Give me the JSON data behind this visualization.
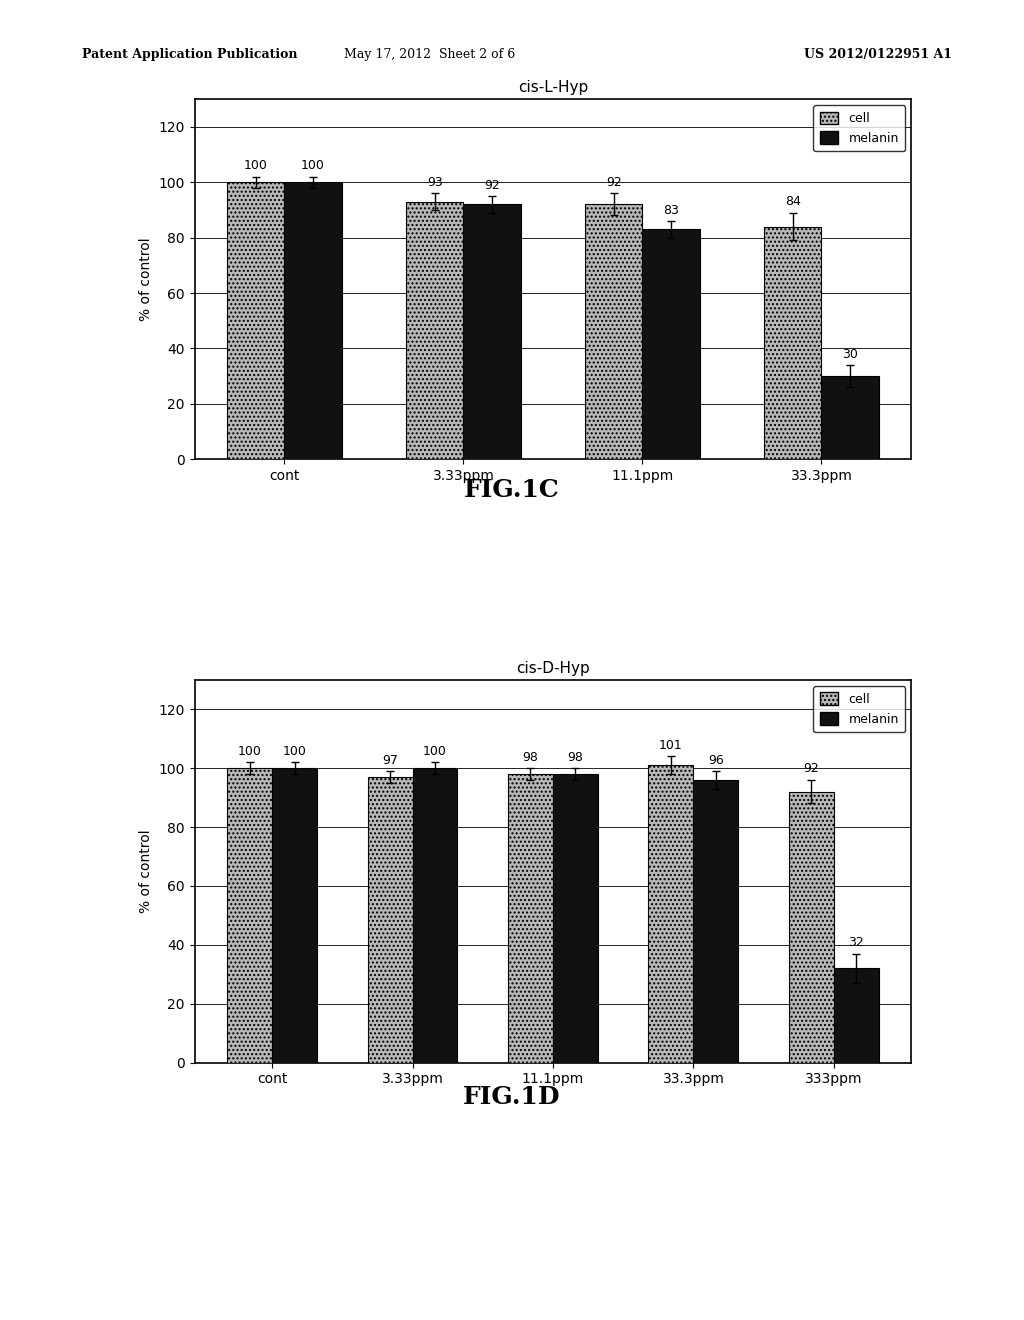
{
  "fig1c": {
    "title": "cis-L-Hyp",
    "categories": [
      "cont",
      "3.33ppm",
      "11.1ppm",
      "33.3ppm"
    ],
    "cell_values": [
      100,
      93,
      92,
      84
    ],
    "melanin_values": [
      100,
      92,
      83,
      30
    ],
    "cell_errors": [
      2,
      3,
      4,
      5
    ],
    "melanin_errors": [
      2,
      3,
      3,
      4
    ],
    "ylabel": "% of control",
    "ylim": [
      0,
      130
    ],
    "yticks": [
      0,
      20,
      40,
      60,
      80,
      100,
      120
    ],
    "fig_label": "FIG.1C"
  },
  "fig1d": {
    "title": "cis-D-Hyp",
    "categories": [
      "cont",
      "3.33ppm",
      "11.1ppm",
      "33.3ppm",
      "333ppm"
    ],
    "cell_values": [
      100,
      97,
      98,
      101,
      92
    ],
    "melanin_values": [
      100,
      100,
      98,
      96,
      32
    ],
    "cell_errors": [
      2,
      2,
      2,
      3,
      4
    ],
    "melanin_errors": [
      2,
      2,
      2,
      3,
      5
    ],
    "ylabel": "% of control",
    "ylim": [
      0,
      130
    ],
    "yticks": [
      0,
      20,
      40,
      60,
      80,
      100,
      120
    ],
    "fig_label": "FIG.1D"
  },
  "header_left": "Patent Application Publication",
  "header_mid": "May 17, 2012  Sheet 2 of 6",
  "header_right": "US 2012/0122951 A1",
  "cell_color": "#b8b8b8",
  "melanin_color": "#111111",
  "background_color": "#ffffff",
  "bar_width": 0.32
}
